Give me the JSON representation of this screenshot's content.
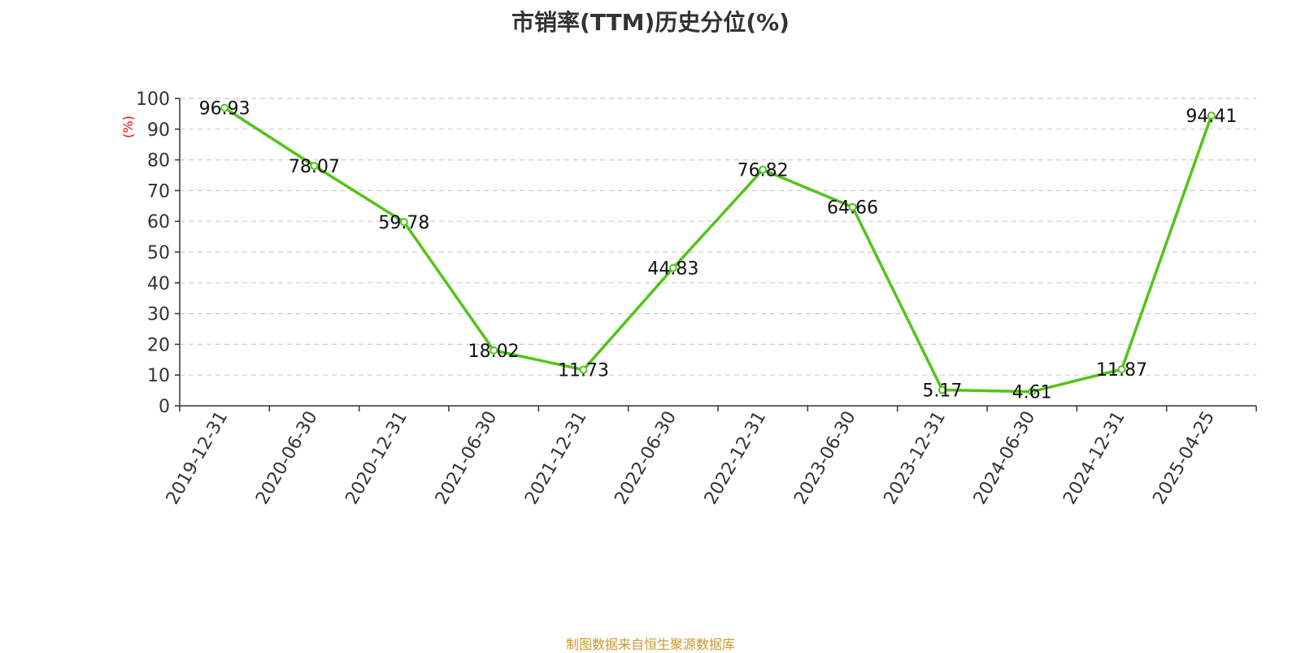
{
  "title": "市销率(TTM)历史分位(%)",
  "source": "制图数据来自恒生聚源数据库",
  "chart_data": {
    "type": "line",
    "title": "市销率(TTM)历史分位(%)",
    "ylabel": "(%)",
    "xlabel": "",
    "categories": [
      "2019-12-31",
      "2020-06-30",
      "2020-12-31",
      "2021-06-30",
      "2021-12-31",
      "2022-06-30",
      "2022-12-31",
      "2023-06-30",
      "2023-12-31",
      "2024-06-30",
      "2024-12-31",
      "2025-04-25"
    ],
    "series": [
      {
        "values": [
          96.93,
          78.07,
          59.78,
          18.02,
          11.73,
          44.83,
          76.82,
          64.66,
          5.17,
          4.61,
          11.87,
          94.41
        ]
      }
    ],
    "data_labels": [
      "96.93",
      "78.07",
      "59.78",
      "18.02",
      "11.73",
      "44.83",
      "76.82",
      "64.66",
      "5.17",
      "4.61",
      "11.87",
      "94.41"
    ],
    "ylim": [
      0,
      100
    ],
    "yticks": [
      "0",
      "10",
      "20",
      "30",
      "40",
      "50",
      "60",
      "70",
      "80",
      "90",
      "100"
    ],
    "grid": true,
    "colors": {
      "line": "#52c41a",
      "ylabel": "#ff0000",
      "axis": "#333333",
      "grid": "#cccccc"
    }
  }
}
